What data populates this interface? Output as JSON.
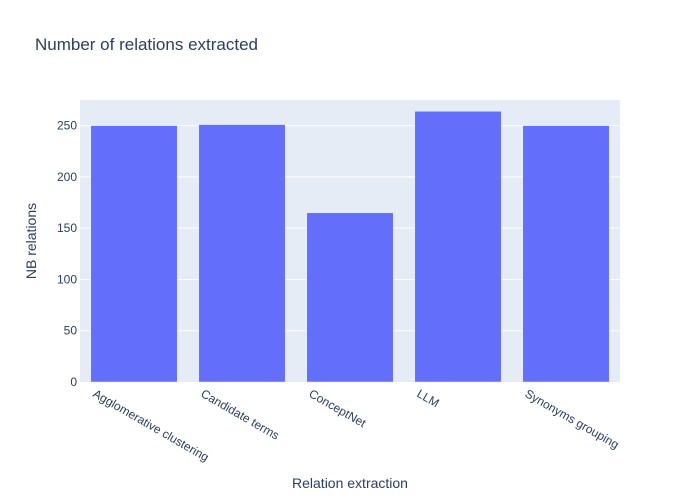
{
  "chart_data": {
    "type": "bar",
    "title": "Number of relations extracted",
    "xlabel": "Relation extraction",
    "ylabel": "NB relations",
    "categories": [
      "Agglomerative clustering",
      "Candidate terms",
      "ConceptNet",
      "LLM",
      "Synonyms grouping"
    ],
    "values": [
      250,
      251,
      165,
      264,
      250
    ],
    "ylim": [
      0,
      275
    ],
    "yticks": [
      0,
      50,
      100,
      150,
      200,
      250
    ],
    "grid": true,
    "colors": {
      "bar": "#636efa",
      "plot_bg": "#e5ecf6",
      "grid": "#ffffff",
      "text": "#2a3f5f"
    }
  }
}
